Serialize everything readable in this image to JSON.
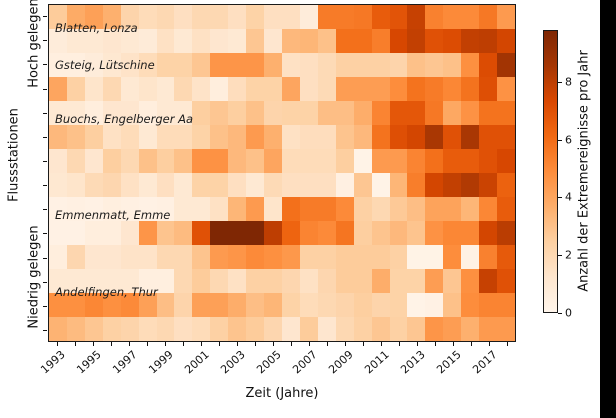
{
  "y_axis": {
    "label": "Flussstationen",
    "group_top_label": "Hoch gelegen",
    "group_bottom_label": "Niedrig gelegen",
    "tick_count": 14
  },
  "x_axis": {
    "label": "Zeit (Jahre)",
    "tick_labels": [
      "1993",
      "1995",
      "1997",
      "1999",
      "2001",
      "2003",
      "2005",
      "2007",
      "2009",
      "2011",
      "2013",
      "2015",
      "2017"
    ]
  },
  "colorbar": {
    "label": "Anzahl der Extremereignisse pro Jahr",
    "tick_labels": [
      "0",
      "2",
      "4",
      "6",
      "8"
    ],
    "tick_values": [
      0,
      2,
      4,
      6,
      8
    ],
    "vmin": 0,
    "vmax": 9.8,
    "colormap_name": "Oranges",
    "colormap_stops": [
      "#fff5eb",
      "#fee6ce",
      "#fdd0a2",
      "#fdae6b",
      "#fd8d3c",
      "#f16913",
      "#d94801",
      "#a63603",
      "#7f2704"
    ]
  },
  "station_labels": [
    {
      "label": "Blatten, Lonza",
      "row_pos": 0.46
    },
    {
      "label": "Gsteig, Lütschine",
      "row_pos": 1.99
    },
    {
      "label": "Buochs, Engelberger Aa",
      "row_pos": 4.23
    },
    {
      "label": "Emmenmatt, Emme",
      "row_pos": 8.2
    },
    {
      "label": "Andelfingen, Thur",
      "row_pos": 11.39
    }
  ],
  "decoration": {
    "right_strip_color": "#000000",
    "spine_color": "#1a1a1a"
  },
  "chart_data": {
    "type": "heatmap",
    "title": "",
    "xlabel": "Zeit (Jahre)",
    "ylabel": "Flussstationen",
    "value_label": "Anzahl der Extremereignisse pro Jahr",
    "colormap": "Oranges",
    "vmin": 0,
    "vmax": 9.8,
    "rows": 14,
    "cols": 26,
    "years": [
      1993,
      1994,
      1995,
      1996,
      1997,
      1998,
      1999,
      2000,
      2001,
      2002,
      2003,
      2004,
      2005,
      2006,
      2007,
      2008,
      2009,
      2010,
      2011,
      2012,
      2013,
      2014,
      2015,
      2016,
      2017,
      2018
    ],
    "values": [
      [
        2.6,
        3.8,
        4.2,
        3.6,
        2.2,
        1.8,
        2.0,
        1.6,
        2.0,
        2.0,
        1.6,
        2.3,
        1.6,
        1.6,
        0.7,
        5.5,
        5.5,
        5.6,
        6.6,
        6.9,
        7.8,
        5.3,
        5.0,
        5.0,
        5.6,
        4.4
      ],
      [
        0.7,
        1.0,
        1.0,
        1.2,
        1.0,
        0.8,
        1.5,
        1.0,
        1.5,
        1.2,
        1.0,
        2.8,
        1.2,
        3.3,
        3.4,
        3.0,
        5.9,
        5.9,
        5.4,
        7.4,
        7.9,
        7.0,
        7.2,
        7.9,
        8.0,
        7.5
      ],
      [
        0.5,
        0.5,
        0.7,
        1.1,
        1.4,
        1.8,
        2.3,
        2.3,
        2.8,
        4.6,
        4.6,
        4.6,
        3.6,
        1.5,
        1.6,
        1.9,
        2.4,
        2.4,
        2.4,
        2.2,
        3.0,
        2.8,
        3.0,
        4.8,
        7.2,
        8.7
      ],
      [
        4.0,
        2.4,
        1.3,
        2.0,
        1.0,
        1.3,
        1.0,
        2.0,
        1.4,
        0.6,
        1.7,
        2.3,
        2.3,
        4.0,
        1.6,
        1.9,
        4.3,
        4.3,
        4.3,
        4.9,
        5.8,
        5.5,
        5.1,
        5.8,
        7.1,
        4.7
      ],
      [
        1.0,
        1.0,
        0.6,
        1.2,
        1.2,
        0.6,
        1.0,
        1.0,
        2.5,
        2.8,
        2.5,
        3.0,
        2.2,
        2.3,
        2.3,
        3.1,
        3.1,
        3.7,
        5.2,
        6.8,
        6.8,
        5.6,
        3.9,
        4.7,
        5.8,
        5.8
      ],
      [
        3.3,
        3.0,
        2.5,
        1.5,
        1.8,
        1.0,
        1.8,
        1.8,
        2.3,
        3.0,
        3.3,
        4.4,
        3.6,
        1.5,
        1.7,
        1.7,
        2.9,
        3.3,
        5.8,
        7.1,
        7.5,
        8.5,
        7.0,
        8.5,
        7.0,
        7.0
      ],
      [
        1.2,
        2.0,
        1.2,
        2.5,
        2.0,
        3.0,
        2.5,
        3.0,
        4.7,
        4.7,
        3.3,
        3.0,
        4.0,
        1.8,
        1.8,
        1.8,
        2.5,
        0.15,
        4.4,
        4.4,
        5.2,
        5.9,
        6.6,
        6.6,
        7.0,
        7.4
      ],
      [
        1.1,
        1.3,
        1.9,
        2.1,
        1.5,
        1.0,
        1.6,
        1.0,
        2.3,
        2.3,
        1.6,
        1.0,
        1.9,
        1.6,
        1.6,
        1.6,
        0.4,
        2.8,
        0.15,
        3.4,
        5.4,
        7.5,
        7.9,
        8.3,
        7.7,
        6.4
      ],
      [
        0.3,
        0.4,
        0.3,
        0.5,
        0.4,
        0.3,
        0.4,
        1.0,
        1.0,
        1.5,
        3.4,
        4.4,
        1.3,
        5.9,
        5.5,
        5.5,
        5.0,
        2.4,
        2.0,
        2.7,
        3.1,
        4.1,
        4.1,
        3.4,
        5.1,
        6.6
      ],
      [
        0.3,
        0.3,
        0.6,
        0.6,
        1.2,
        4.6,
        2.9,
        3.2,
        7.0,
        9.8,
        9.8,
        9.8,
        8.0,
        6.3,
        5.2,
        5.0,
        5.7,
        2.5,
        2.9,
        3.3,
        2.9,
        4.7,
        5.1,
        5.1,
        7.5,
        8.1
      ],
      [
        0.6,
        2.1,
        1.2,
        1.2,
        1.4,
        1.4,
        2.0,
        2.0,
        2.9,
        4.4,
        4.6,
        5.0,
        4.8,
        4.5,
        2.4,
        2.4,
        2.6,
        2.6,
        2.6,
        2.4,
        0.2,
        0.2,
        4.9,
        0.3,
        5.3,
        6.7
      ],
      [
        1.0,
        1.0,
        1.0,
        1.0,
        1.0,
        0.5,
        0.5,
        2.0,
        2.6,
        2.0,
        1.5,
        2.4,
        2.4,
        2.1,
        1.5,
        2.1,
        2.6,
        2.6,
        3.7,
        2.3,
        2.3,
        4.3,
        2.8,
        4.8,
        7.8,
        7.0
      ],
      [
        4.8,
        4.8,
        5.1,
        4.8,
        5.0,
        4.2,
        3.1,
        2.2,
        4.2,
        4.2,
        3.7,
        3.1,
        3.4,
        2.3,
        1.8,
        2.0,
        2.2,
        2.5,
        2.2,
        2.3,
        0.15,
        0.3,
        3.0,
        4.9,
        5.2,
        5.2
      ],
      [
        3.5,
        3.2,
        2.8,
        2.4,
        2.2,
        1.8,
        2.0,
        1.6,
        1.8,
        2.4,
        2.9,
        2.6,
        2.1,
        1.2,
        2.6,
        1.2,
        2.0,
        2.4,
        2.8,
        2.4,
        2.8,
        4.6,
        4.3,
        3.6,
        4.4,
        4.4
      ]
    ]
  }
}
